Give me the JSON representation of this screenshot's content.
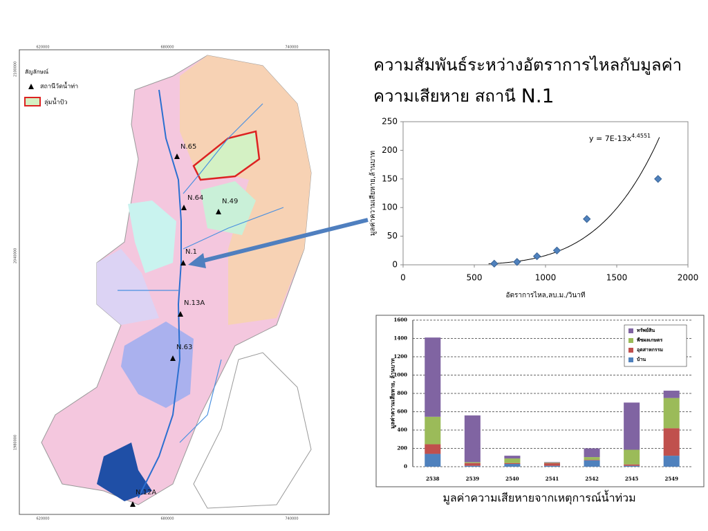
{
  "slide": {
    "title_line1": "ความสัมพันธ์ระหว่างอัตราการไหลกับมูลค่า",
    "title_line2": "ความเสียหาย สถานี",
    "title_station": "N.1",
    "caption": "มูลค่าความเสียหายจากเหตุการณ์น้ำท่วม"
  },
  "map": {
    "legend_title": "สัญลักษณ์",
    "legend_station": "สถานีวัดน้ำท่า",
    "legend_basin": "ลุ่มน้ำปัว",
    "x_coords": [
      "620000",
      "680000",
      "740000"
    ],
    "y_coords": [
      "2100000",
      "2040000",
      "1980000"
    ],
    "stations": [
      "N.65",
      "N.64",
      "N.49",
      "N.1",
      "N.13A",
      "N.63",
      "N.12A"
    ]
  },
  "chart_data": [
    {
      "type": "scatter",
      "xlabel": "อัตราการไหล,ลบ.ม./วินาที",
      "ylabel": "มูลค่าความเสียหาย,ล้านบาท",
      "x": [
        640,
        800,
        940,
        1080,
        1290,
        1790
      ],
      "values": [
        2,
        5,
        15,
        25,
        80,
        150
      ],
      "color": "#4f81bd",
      "xlim": [
        0,
        2000
      ],
      "xticks": [
        0,
        500,
        1000,
        1500,
        2000
      ],
      "ylim": [
        0,
        250
      ],
      "yticks": [
        0,
        50,
        100,
        150,
        200,
        250
      ],
      "trendline": {
        "a": 7e-13,
        "b": 4.4551,
        "label": "y = 7E-13x",
        "label_exponent": "4.4551"
      }
    },
    {
      "type": "stacked-bar",
      "ylabel": "มูลค่าความเสียหาย, ล้านบาท",
      "categories": [
        "2538",
        "2539",
        "2540",
        "2541",
        "2542",
        "2545",
        "2549"
      ],
      "series": [
        {
          "name": "บ้าน",
          "color": "#4f81bd",
          "values": [
            140,
            10,
            30,
            10,
            70,
            10,
            120
          ]
        },
        {
          "name": "อุตสาหกรรม",
          "color": "#c0504d",
          "values": [
            105,
            30,
            10,
            30,
            5,
            15,
            300
          ]
        },
        {
          "name": "พืชผลเกษตร",
          "color": "#9bbb59",
          "values": [
            300,
            10,
            50,
            5,
            30,
            160,
            330
          ]
        },
        {
          "name": "ทรัพย์สิน",
          "color": "#8064a2",
          "values": [
            865,
            510,
            30,
            5,
            95,
            515,
            80
          ]
        }
      ],
      "ylim": [
        0,
        1600
      ],
      "yticks": [
        0,
        200,
        400,
        600,
        800,
        1000,
        1200,
        1400,
        1600
      ],
      "grid": true,
      "legend": "top-right"
    }
  ]
}
